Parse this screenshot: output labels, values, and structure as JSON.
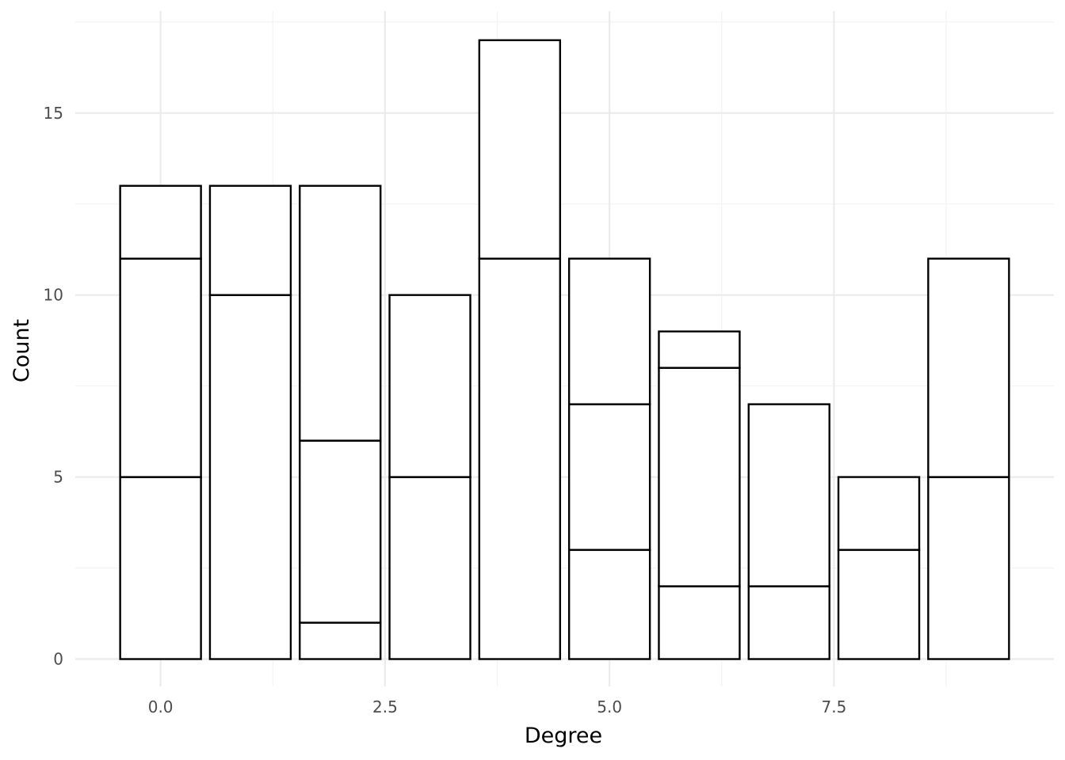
{
  "chart_data": {
    "type": "bar",
    "stacked": true,
    "xlabel": "Degree",
    "ylabel": "Count",
    "xlim": [
      -0.95,
      9.95
    ],
    "ylim": [
      -0.75,
      17.8
    ],
    "x_breaks": [
      0.0,
      2.5,
      5.0,
      7.5
    ],
    "x_tick_labels": [
      "0.0",
      "2.5",
      "5.0",
      "7.5"
    ],
    "y_breaks": [
      0,
      5,
      10,
      15
    ],
    "y_tick_labels": [
      "0",
      "5",
      "10",
      "15"
    ],
    "grid": true,
    "bar_width": 0.9,
    "fill_color": "#ffffff",
    "stroke_color": "#000000",
    "bars": [
      {
        "x": 0,
        "segments": [
          5,
          6,
          2
        ]
      },
      {
        "x": 1,
        "segments": [
          10,
          3
        ]
      },
      {
        "x": 2,
        "segments": [
          1,
          5,
          7
        ]
      },
      {
        "x": 3,
        "segments": [
          5,
          5
        ]
      },
      {
        "x": 4,
        "segments": [
          11,
          6
        ]
      },
      {
        "x": 5,
        "segments": [
          3,
          4,
          4
        ]
      },
      {
        "x": 6,
        "segments": [
          2,
          6,
          1
        ]
      },
      {
        "x": 7,
        "segments": [
          2,
          5
        ]
      },
      {
        "x": 8,
        "segments": [
          3,
          2
        ]
      },
      {
        "x": 9,
        "segments": [
          5,
          6
        ]
      }
    ]
  }
}
